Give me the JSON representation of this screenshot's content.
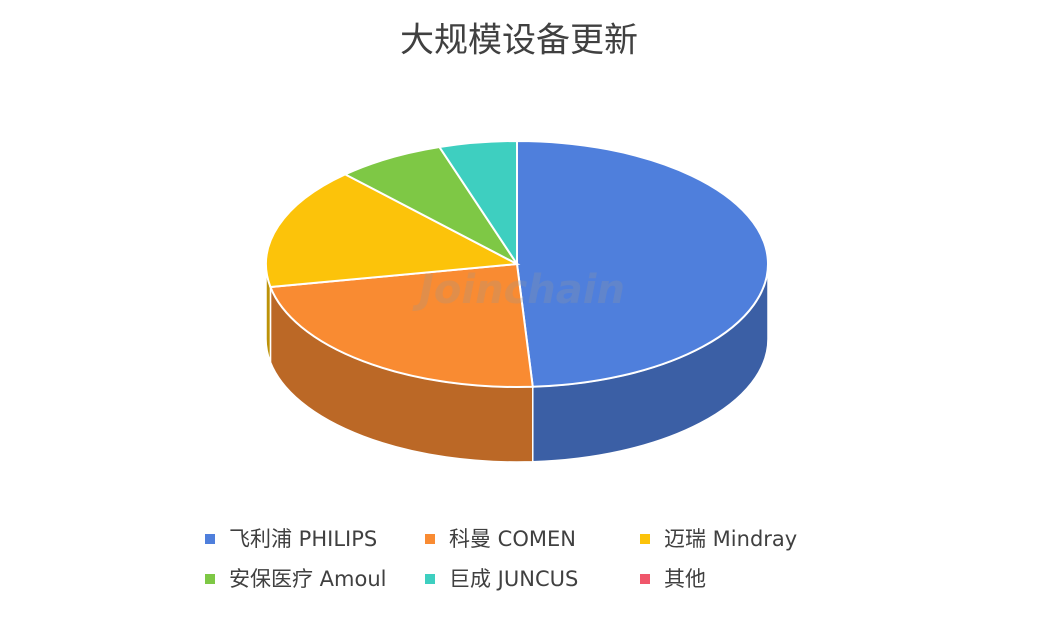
{
  "chart_data": {
    "type": "pie3d",
    "title": "大规模设备更新",
    "watermark": "Joinchain",
    "categories": [
      "飞利浦 PHILIPS",
      "科曼 COMEN",
      "迈瑞 Mindray",
      "安保医疗 Amoul",
      "巨成 JUNCUS",
      "其他"
    ],
    "values": [
      49,
      23,
      16,
      7,
      5,
      0
    ],
    "colors": [
      "#4f7fdc",
      "#f98b32",
      "#fcc30a",
      "#7ec845",
      "#3ecfc0",
      "#f0566b"
    ]
  }
}
